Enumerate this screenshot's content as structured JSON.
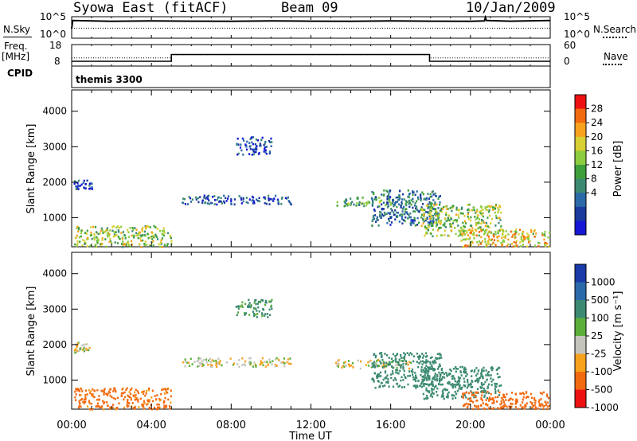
{
  "header": {
    "title": "Syowa East (fitACF)",
    "beam": "Beam 09",
    "date": "10/Jan/2009"
  },
  "strip_panels": {
    "nsky_label": "N.Sky",
    "nsky_ticks": [
      "10^5",
      "10^0"
    ],
    "nsearch_label": "N.Search",
    "nsearch_ticks": [
      "10^5",
      "10^0"
    ],
    "freq_label_line1": "Freq.",
    "freq_label_line2": "[MHz]",
    "freq_ticks": [
      "18",
      "8"
    ],
    "nave_label": "Nave",
    "nave_ticks": [
      "60",
      "0"
    ],
    "cpid_label": "CPID",
    "cpid_value": "themis 3300"
  },
  "colorbars": {
    "power": {
      "label": "Power [dB]",
      "ticks": [
        "28",
        "24",
        "20",
        "16",
        "12",
        "8",
        "4"
      ],
      "colors": [
        "#ee1111",
        "#f26a10",
        "#f7a21c",
        "#d8cf32",
        "#8ccc3f",
        "#3ea03a",
        "#3c8a72",
        "#2a6aa8",
        "#1a3a9e",
        "#1616d6"
      ]
    },
    "velocity": {
      "label": "Velocity [m s⁻¹]",
      "ticks": [
        "1000",
        "500",
        "100",
        "25",
        "-25",
        "-100",
        "-500",
        "-1000"
      ],
      "colors": [
        "#1a3aa8",
        "#2a6aa8",
        "#3c8a72",
        "#5cb03a",
        "#c4c4bc",
        "#f7a21c",
        "#f26a10",
        "#ee1111"
      ]
    }
  },
  "chart_data": [
    {
      "type": "line",
      "name": "strip",
      "x_unit": "hours UT",
      "xlim": [
        0,
        24
      ],
      "nsky": [
        [
          0,
          2.05
        ],
        [
          0.05,
          4.2
        ],
        [
          2,
          4.0
        ],
        [
          4,
          4.1
        ],
        [
          6,
          4.05
        ],
        [
          8,
          4.0
        ],
        [
          10,
          4.1
        ],
        [
          12,
          4.05
        ],
        [
          14,
          4.0
        ],
        [
          16,
          4.1
        ],
        [
          18,
          4.05
        ],
        [
          20,
          4.0
        ],
        [
          20.7,
          4.1
        ],
        [
          20.75,
          5.0
        ],
        [
          20.8,
          4.2
        ],
        [
          22,
          4.05
        ],
        [
          24,
          4.2
        ]
      ],
      "nsearch": [
        [
          0,
          2.2
        ],
        [
          24,
          2.2
        ]
      ],
      "freq_mhz": [
        [
          0,
          10.0
        ],
        [
          5.0,
          10.0
        ],
        [
          5.0,
          13.4
        ],
        [
          17.95,
          13.4
        ],
        [
          17.95,
          10.0
        ],
        [
          24,
          10.0
        ]
      ],
      "nave": [
        [
          0,
          22
        ],
        [
          5.0,
          22
        ],
        [
          5.0,
          32
        ],
        [
          17.95,
          32
        ],
        [
          17.95,
          22
        ],
        [
          24,
          22
        ]
      ]
    },
    {
      "type": "heatmap",
      "title": "",
      "xlabel": "",
      "ylabel": "Slant Range [km]",
      "x_unit": "hours UT",
      "xlim": [
        0,
        24
      ],
      "ylim": [
        180,
        4600
      ],
      "yticks": [
        1000,
        2000,
        3000,
        4000
      ],
      "colorbar_label": "Power [dB]",
      "colorbar_ticks": [
        28,
        24,
        20,
        16,
        12,
        8,
        4
      ],
      "regions": [
        {
          "x": [
            0.1,
            1.0
          ],
          "y": [
            1800,
            2100
          ],
          "v": 6
        },
        {
          "x": [
            0.1,
            5.0
          ],
          "y": [
            200,
            800
          ],
          "v": 18
        },
        {
          "x": [
            8.2,
            10.0
          ],
          "y": [
            2800,
            3300
          ],
          "v": 7
        },
        {
          "x": [
            5.5,
            11.0
          ],
          "y": [
            1400,
            1650
          ],
          "v": 7
        },
        {
          "x": [
            13.2,
            17.0
          ],
          "y": [
            1350,
            1600
          ],
          "v": 14
        },
        {
          "x": [
            15.0,
            18.5
          ],
          "y": [
            800,
            1800
          ],
          "v": 10
        },
        {
          "x": [
            17.5,
            21.5
          ],
          "y": [
            500,
            1400
          ],
          "v": 18
        },
        {
          "x": [
            19.5,
            24.0
          ],
          "y": [
            200,
            700
          ],
          "v": 22
        }
      ]
    },
    {
      "type": "heatmap",
      "title": "",
      "xlabel": "Time UT",
      "ylabel": "Slant Range [km]",
      "x_unit": "hours UT",
      "xlim": [
        0,
        24
      ],
      "ylim": [
        180,
        4600
      ],
      "yticks": [
        1000,
        2000,
        3000,
        4000
      ],
      "xticks": [
        "00:00",
        "04:00",
        "08:00",
        "12:00",
        "16:00",
        "20:00",
        "00:00"
      ],
      "colorbar_label": "Velocity [m s⁻¹]",
      "colorbar_ticks": [
        1000,
        500,
        100,
        25,
        -25,
        -100,
        -500,
        -1000
      ],
      "regions": [
        {
          "x": [
            0.1,
            1.0
          ],
          "y": [
            1800,
            2100
          ],
          "v": 0
        },
        {
          "x": [
            0.1,
            5.0
          ],
          "y": [
            200,
            800
          ],
          "v": -150
        },
        {
          "x": [
            8.2,
            10.0
          ],
          "y": [
            2800,
            3300
          ],
          "v": 120
        },
        {
          "x": [
            5.5,
            11.0
          ],
          "y": [
            1400,
            1650
          ],
          "v": 0
        },
        {
          "x": [
            13.2,
            17.0
          ],
          "y": [
            1350,
            1600
          ],
          "v": 0
        },
        {
          "x": [
            15.0,
            18.5
          ],
          "y": [
            800,
            1800
          ],
          "v": 250
        },
        {
          "x": [
            17.5,
            21.5
          ],
          "y": [
            500,
            1400
          ],
          "v": 400
        },
        {
          "x": [
            19.5,
            24.0
          ],
          "y": [
            200,
            700
          ],
          "v": -200
        }
      ]
    }
  ]
}
